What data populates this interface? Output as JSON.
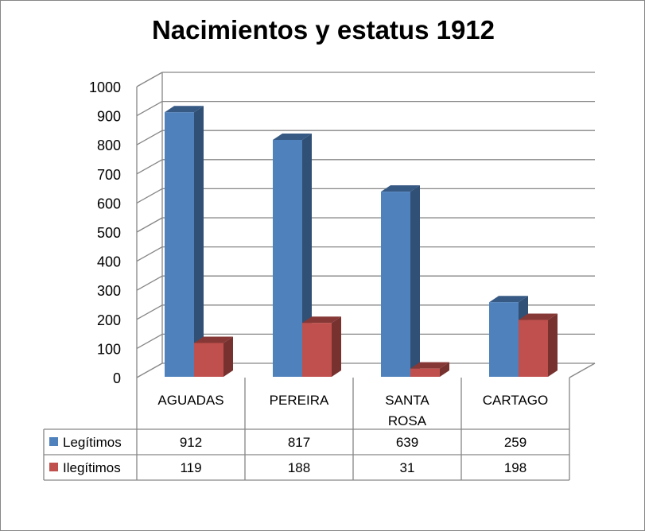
{
  "chart_data": {
    "type": "bar",
    "title": "Nacimientos y estatus 1912",
    "categories": [
      "AGUADAS",
      "PEREIRA",
      "SANTA ROSA",
      "CARTAGO"
    ],
    "category_lines": [
      [
        "AGUADAS"
      ],
      [
        "PEREIRA"
      ],
      [
        "SANTA",
        "ROSA"
      ],
      [
        "CARTAGO"
      ]
    ],
    "series": [
      {
        "name": "Legítimos",
        "values": [
          912,
          817,
          639,
          259
        ],
        "color": "#4F81BD"
      },
      {
        "name": "Ilegítimos",
        "values": [
          119,
          188,
          31,
          198
        ],
        "color": "#C0504D"
      }
    ],
    "ylim": [
      0,
      1000
    ],
    "yticks": [
      0,
      100,
      200,
      300,
      400,
      500,
      600,
      700,
      800,
      900,
      1000
    ],
    "style": "3d-clustered-column",
    "grid": true,
    "legend": "data-table"
  }
}
